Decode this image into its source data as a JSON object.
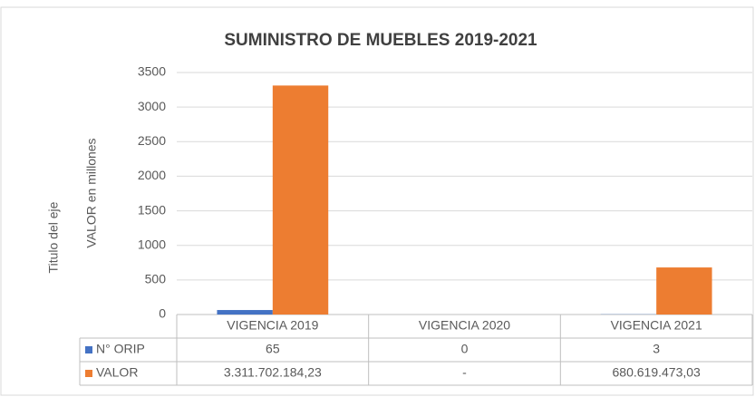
{
  "chart_data": {
    "type": "bar",
    "title": "SUMINISTRO DE MUEBLES 2019-2021",
    "y_label": "VALOR en millones",
    "y2_label": "Titulo del eje",
    "categories": [
      "VIGENCIA 2019",
      "VIGENCIA 2020",
      "VIGENCIA 2021"
    ],
    "series": [
      {
        "name": "N° ORIP",
        "color": "#4472c4",
        "values": [
          65,
          0,
          3
        ]
      },
      {
        "name": "VALOR",
        "color": "#ed7d31",
        "values": [
          3311.70218423,
          null,
          680.61947303
        ],
        "value_labels": [
          "3.311.702.184,23",
          "-",
          "680.619.473,03"
        ]
      }
    ],
    "ylim": [
      0,
      3500
    ],
    "yticks": [
      0,
      500,
      1000,
      1500,
      2000,
      2500,
      3000,
      3500
    ],
    "grid": true
  }
}
